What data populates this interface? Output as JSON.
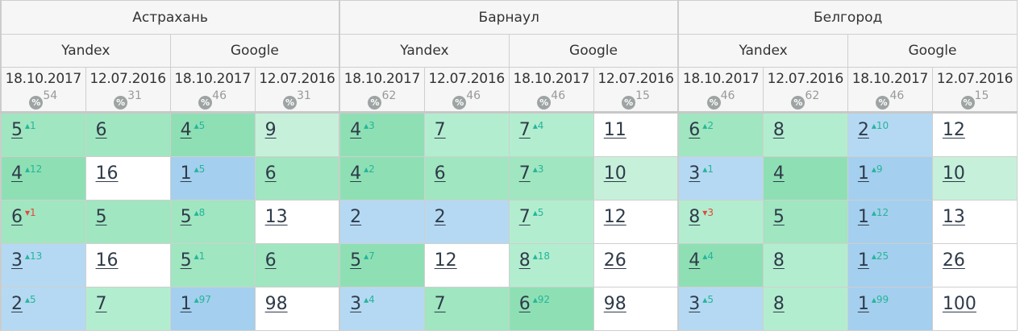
{
  "colors": {
    "g1": "#8ee0b4",
    "g2": "#a0e6c0",
    "g3": "#b3edcf",
    "g4": "#c6f0da",
    "b1": "#b5d9f2",
    "b2": "#a5cfee",
    "w": "#ffffff",
    "up": "#25b59a",
    "down": "#e04a3a"
  },
  "cities": [
    {
      "name": "Астрахань",
      "engines": [
        {
          "name": "Yandex",
          "dates": [
            {
              "date": "18.10.2017",
              "pct": "54"
            },
            {
              "date": "12.07.2016",
              "pct": "31"
            }
          ]
        },
        {
          "name": "Google",
          "dates": [
            {
              "date": "18.10.2017",
              "pct": "46"
            },
            {
              "date": "12.07.2016",
              "pct": "31"
            }
          ]
        }
      ]
    },
    {
      "name": "Барнаул",
      "engines": [
        {
          "name": "Yandex",
          "dates": [
            {
              "date": "18.10.2017",
              "pct": "62"
            },
            {
              "date": "12.07.2016",
              "pct": "46"
            }
          ]
        },
        {
          "name": "Google",
          "dates": [
            {
              "date": "18.10.2017",
              "pct": "46"
            },
            {
              "date": "12.07.2016",
              "pct": "15"
            }
          ]
        }
      ]
    },
    {
      "name": "Белгород",
      "engines": [
        {
          "name": "Yandex",
          "dates": [
            {
              "date": "18.10.2017",
              "pct": "46"
            },
            {
              "date": "12.07.2016",
              "pct": "62"
            }
          ]
        },
        {
          "name": "Google",
          "dates": [
            {
              "date": "18.10.2017",
              "pct": "46"
            },
            {
              "date": "12.07.2016",
              "pct": "15"
            }
          ]
        }
      ]
    }
  ],
  "rows": [
    [
      [
        "5",
        "1",
        "up",
        "g2"
      ],
      [
        "6",
        "",
        "",
        "g2"
      ],
      [
        "4",
        "5",
        "up",
        "g1"
      ],
      [
        "9",
        "",
        "",
        "g4"
      ],
      [
        "4",
        "3",
        "up",
        "g1"
      ],
      [
        "7",
        "",
        "",
        "g3"
      ],
      [
        "7",
        "4",
        "up",
        "g3"
      ],
      [
        "11",
        "",
        "",
        "w"
      ],
      [
        "6",
        "2",
        "up",
        "g2"
      ],
      [
        "8",
        "",
        "",
        "g3"
      ],
      [
        "2",
        "10",
        "up",
        "b1"
      ],
      [
        "12",
        "",
        "",
        "w"
      ]
    ],
    [
      [
        "4",
        "12",
        "up",
        "g1"
      ],
      [
        "16",
        "",
        "",
        "w"
      ],
      [
        "1",
        "5",
        "up",
        "b2"
      ],
      [
        "6",
        "",
        "",
        "g2"
      ],
      [
        "4",
        "2",
        "up",
        "g1"
      ],
      [
        "6",
        "",
        "",
        "g2"
      ],
      [
        "7",
        "3",
        "up",
        "g2"
      ],
      [
        "10",
        "",
        "",
        "g4"
      ],
      [
        "3",
        "1",
        "up",
        "b1"
      ],
      [
        "4",
        "",
        "",
        "g1"
      ],
      [
        "1",
        "9",
        "up",
        "b2"
      ],
      [
        "10",
        "",
        "",
        "g4"
      ]
    ],
    [
      [
        "6",
        "1",
        "down",
        "g2"
      ],
      [
        "5",
        "",
        "",
        "g2"
      ],
      [
        "5",
        "8",
        "up",
        "g2"
      ],
      [
        "13",
        "",
        "",
        "w"
      ],
      [
        "2",
        "",
        "",
        "b1"
      ],
      [
        "2",
        "",
        "",
        "b1"
      ],
      [
        "7",
        "5",
        "up",
        "g3"
      ],
      [
        "12",
        "",
        "",
        "w"
      ],
      [
        "8",
        "3",
        "down",
        "g3"
      ],
      [
        "5",
        "",
        "",
        "g2"
      ],
      [
        "1",
        "12",
        "up",
        "b2"
      ],
      [
        "13",
        "",
        "",
        "w"
      ]
    ],
    [
      [
        "3",
        "13",
        "up",
        "b1"
      ],
      [
        "16",
        "",
        "",
        "w"
      ],
      [
        "5",
        "1",
        "up",
        "g2"
      ],
      [
        "6",
        "",
        "",
        "g2"
      ],
      [
        "5",
        "7",
        "up",
        "g1"
      ],
      [
        "12",
        "",
        "",
        "w"
      ],
      [
        "8",
        "18",
        "up",
        "g3"
      ],
      [
        "26",
        "",
        "",
        "w"
      ],
      [
        "4",
        "4",
        "up",
        "g1"
      ],
      [
        "8",
        "",
        "",
        "g3"
      ],
      [
        "1",
        "25",
        "up",
        "b2"
      ],
      [
        "26",
        "",
        "",
        "w"
      ]
    ],
    [
      [
        "2",
        "5",
        "up",
        "b1"
      ],
      [
        "7",
        "",
        "",
        "g3"
      ],
      [
        "1",
        "97",
        "up",
        "b2"
      ],
      [
        "98",
        "",
        "",
        "w"
      ],
      [
        "3",
        "4",
        "up",
        "b1"
      ],
      [
        "7",
        "",
        "",
        "g2"
      ],
      [
        "6",
        "92",
        "up",
        "g1"
      ],
      [
        "98",
        "",
        "",
        "w"
      ],
      [
        "3",
        "5",
        "up",
        "b1"
      ],
      [
        "8",
        "",
        "",
        "g3"
      ],
      [
        "1",
        "99",
        "up",
        "b2"
      ],
      [
        "100",
        "",
        "",
        "w"
      ]
    ]
  ],
  "pct_symbol": "%"
}
